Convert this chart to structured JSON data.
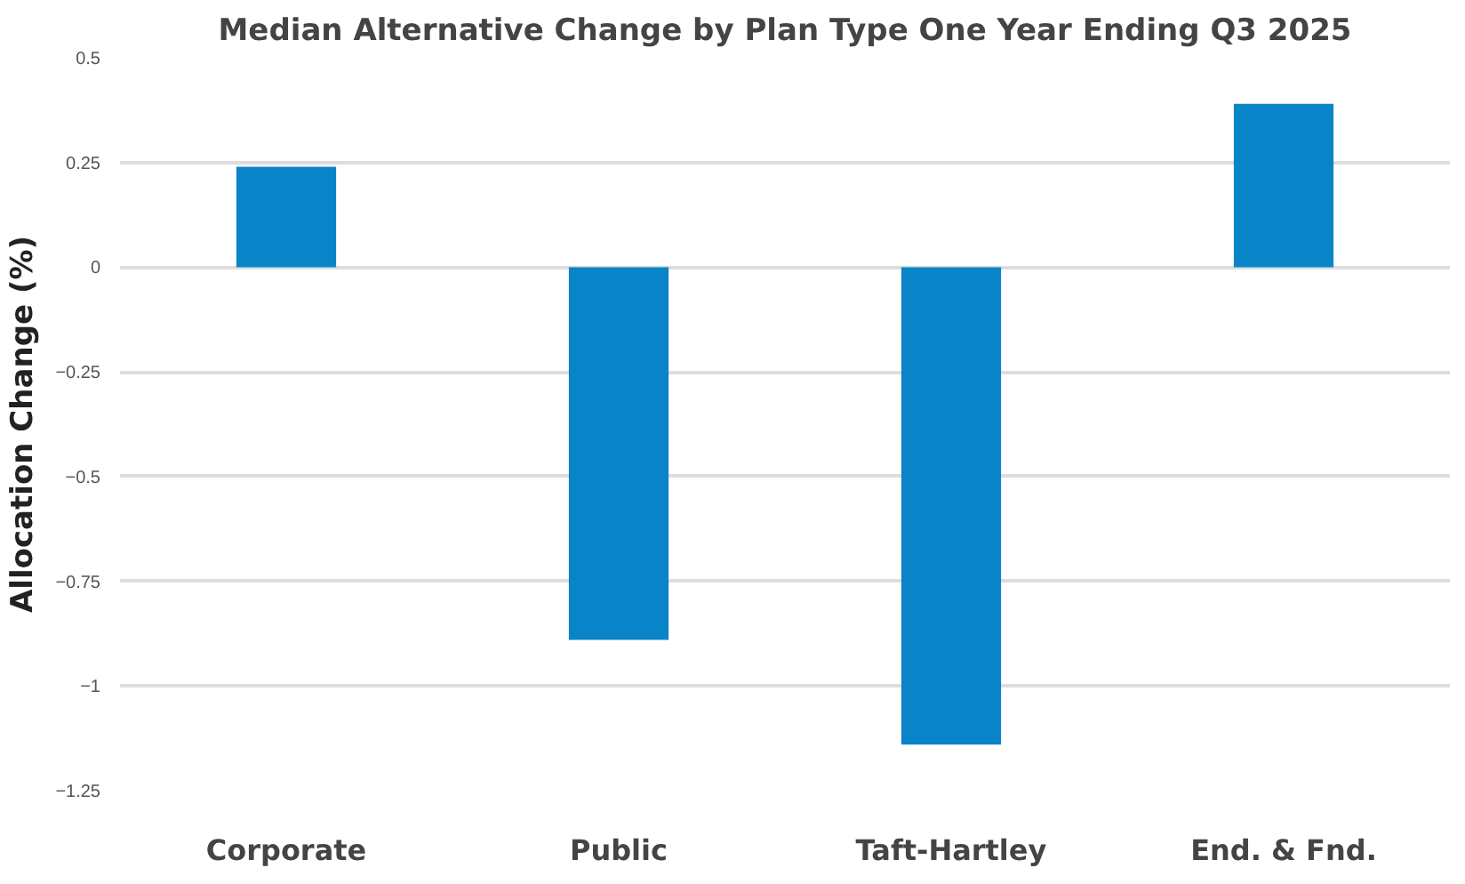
{
  "chart_data": {
    "type": "bar",
    "title": "Median Alternative Change by Plan Type One Year Ending Q3 2025",
    "ylabel": "Allocation Change (%)",
    "categories": [
      "Corporate",
      "Public",
      "Taft-Hartley",
      "End. & Fnd."
    ],
    "values": [
      0.24,
      -0.89,
      -1.14,
      0.39
    ],
    "color": "#0a84c8",
    "ylim": [
      -1.25,
      0.5
    ],
    "yticks": [
      0.5,
      0.25,
      0,
      -0.25,
      -0.5,
      -0.75,
      -1,
      -1.25
    ],
    "grid": "y"
  }
}
